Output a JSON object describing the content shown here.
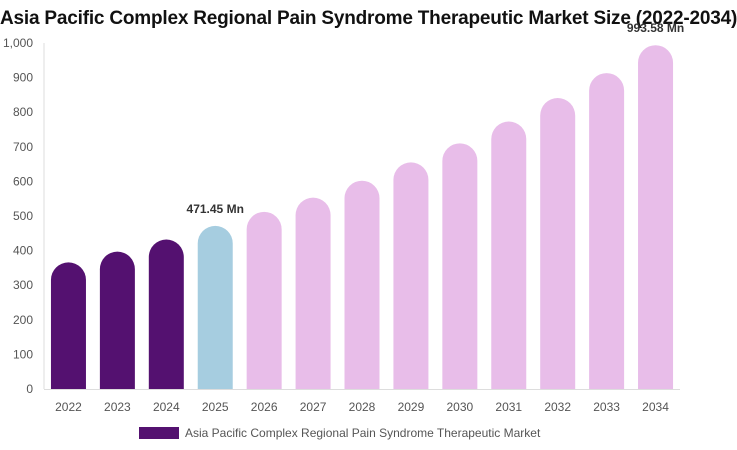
{
  "chart_data": {
    "type": "bar",
    "title": "Asia Pacific Complex Regional Pain Syndrome Therapeutic Market Size (2022-2034)",
    "xlabel": "",
    "ylabel": "",
    "categories": [
      "2022",
      "2023",
      "2024",
      "2025",
      "2026",
      "2027",
      "2028",
      "2029",
      "2030",
      "2031",
      "2032",
      "2033",
      "2034"
    ],
    "series": [
      {
        "name": "Asia Pacific Complex Regional Pain Syndrome Therapeutic Market",
        "values": [
          366,
          397,
          432,
          471.45,
          512,
          553,
          602,
          655,
          710,
          773,
          841,
          913,
          993.58
        ]
      }
    ],
    "ylim": [
      0,
      1000
    ],
    "yticks": [
      0,
      100,
      200,
      300,
      400,
      500,
      600,
      700,
      800,
      900,
      1000
    ],
    "ytick_labels": [
      "0",
      "100",
      "200",
      "300",
      "400",
      "500",
      "600",
      "700",
      "800",
      "900",
      "1,000"
    ],
    "data_labels": [
      {
        "category": "2025",
        "text": "471.45 Mn"
      },
      {
        "category": "2034",
        "text": "993.58 Mn"
      }
    ],
    "colors": {
      "historical": "#541170",
      "base_year": "#a6cde0",
      "forecast": "#e8bde9"
    },
    "bar_color_groups": [
      "historical",
      "historical",
      "historical",
      "base_year",
      "forecast",
      "forecast",
      "forecast",
      "forecast",
      "forecast",
      "forecast",
      "forecast",
      "forecast",
      "forecast"
    ],
    "grid": false,
    "legend": {
      "position": "bottom",
      "label": "Asia Pacific Complex Regional Pain Syndrome Therapeutic Market",
      "color": "#541170"
    }
  }
}
